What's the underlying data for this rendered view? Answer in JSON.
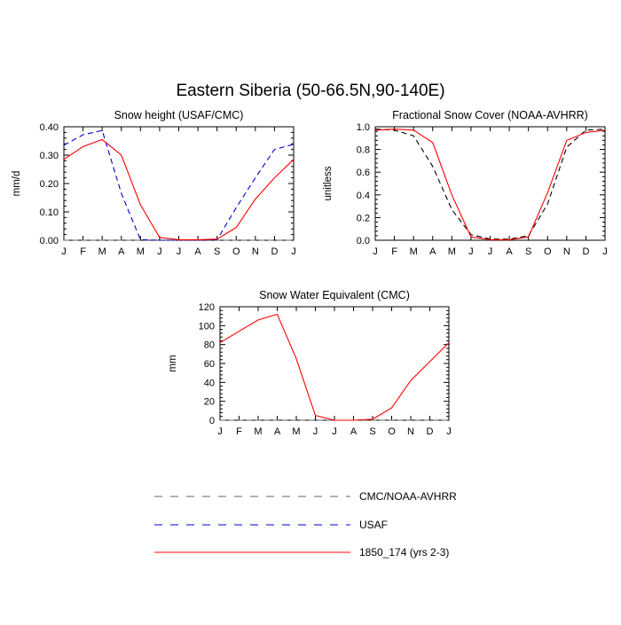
{
  "title": "Eastern Siberia (50-66.5N,90-140E)",
  "colors": {
    "model": "#ff0000",
    "usaf": "#0000cc",
    "obs": "#000000",
    "zero_line": "#666666"
  },
  "legend": [
    {
      "label": "CMC/NOAA-AVHRR",
      "color": "#000000",
      "dash": "dashed-gray"
    },
    {
      "label": "USAF",
      "color": "#0000cc",
      "dash": "dashed"
    },
    {
      "label": "1850_174 (yrs 2-3)",
      "color": "#ff0000",
      "dash": "solid"
    }
  ],
  "chart_data": [
    {
      "type": "line",
      "title": "Snow height (USAF/CMC)",
      "ylabel": "mm/d",
      "xlabel": "",
      "categories": [
        "J",
        "F",
        "M",
        "A",
        "M",
        "J",
        "J",
        "A",
        "S",
        "O",
        "N",
        "D",
        "J"
      ],
      "ylim": [
        0,
        0.4
      ],
      "yticks": [
        "0.00",
        "0.10",
        "0.20",
        "0.30",
        "0.40"
      ],
      "series": [
        {
          "name": "CMC/NOAA-AVHRR",
          "style": "dashed",
          "color": "#000000",
          "values": [
            0,
            0,
            0,
            0,
            0,
            0,
            0,
            0,
            0,
            0,
            0,
            0,
            0
          ]
        },
        {
          "name": "USAF",
          "style": "dashed",
          "color": "#0000cc",
          "values": [
            0.335,
            0.372,
            0.387,
            0.165,
            0.002,
            0.0,
            0.0,
            0.0,
            0.002,
            0.115,
            0.22,
            0.32,
            0.338
          ]
        },
        {
          "name": "1850_174 (yrs 2-3)",
          "style": "solid",
          "color": "#ff0000",
          "values": [
            0.285,
            0.33,
            0.355,
            0.3,
            0.125,
            0.01,
            0.002,
            0.002,
            0.004,
            0.045,
            0.145,
            0.22,
            0.285
          ]
        }
      ]
    },
    {
      "type": "line",
      "title": "Fractional Snow Cover (NOAA-AVHRR)",
      "ylabel": "unitless",
      "xlabel": "",
      "categories": [
        "J",
        "F",
        "M",
        "A",
        "M",
        "J",
        "J",
        "A",
        "S",
        "O",
        "N",
        "D",
        "J"
      ],
      "ylim": [
        0,
        1.0
      ],
      "yticks": [
        "0.0",
        "0.2",
        "0.4",
        "0.6",
        "0.8",
        "1.0"
      ],
      "series": [
        {
          "name": "CMC/NOAA-AVHRR",
          "style": "dashed",
          "color": "#000000",
          "values": [
            0.98,
            0.97,
            0.92,
            0.65,
            0.27,
            0.05,
            0.01,
            0.01,
            0.04,
            0.32,
            0.82,
            0.97,
            0.98
          ]
        },
        {
          "name": "1850_174 (yrs 2-3)",
          "style": "solid",
          "color": "#ff0000",
          "values": [
            0.97,
            0.98,
            0.97,
            0.86,
            0.4,
            0.03,
            0.005,
            0.005,
            0.03,
            0.42,
            0.88,
            0.95,
            0.97
          ]
        }
      ]
    },
    {
      "type": "line",
      "title": "Snow Water Equivalent (CMC)",
      "ylabel": "mm",
      "xlabel": "",
      "categories": [
        "J",
        "F",
        "M",
        "A",
        "M",
        "J",
        "J",
        "A",
        "S",
        "O",
        "N",
        "D",
        "J"
      ],
      "ylim": [
        0,
        120
      ],
      "yticks": [
        "0",
        "20",
        "40",
        "60",
        "80",
        "100",
        "120"
      ],
      "series": [
        {
          "name": "CMC/NOAA-AVHRR",
          "style": "dashed",
          "color": "#000000",
          "values": [
            0,
            0,
            0,
            0,
            0,
            0,
            0,
            0,
            0,
            0,
            0,
            0,
            0
          ]
        },
        {
          "name": "1850_174 (yrs 2-3)",
          "style": "solid",
          "color": "#ff0000",
          "values": [
            82,
            94,
            106,
            112,
            65,
            5,
            0,
            0,
            1,
            13,
            42,
            62,
            82
          ]
        }
      ]
    }
  ]
}
